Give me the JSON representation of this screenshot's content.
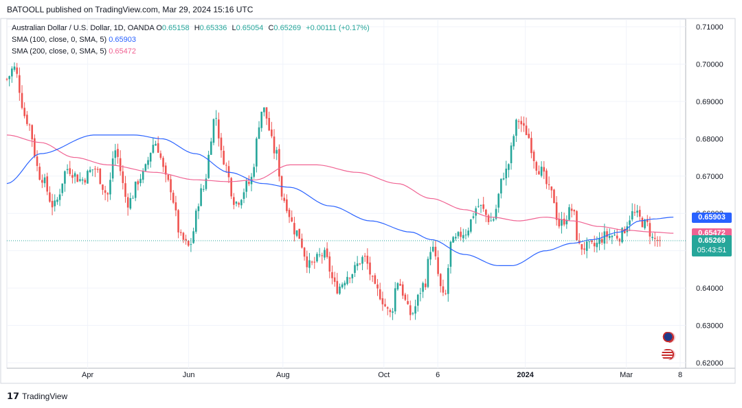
{
  "header": {
    "published": "BATOOLL published on TradingView.com, Mar 29, 2024 15:16 UTC"
  },
  "legend": {
    "symbol": "Australian Dollar / U.S. Dollar, 1D, OANDA",
    "o_label": "O",
    "o": "0.65158",
    "h_label": "H",
    "h": "0.65336",
    "l_label": "L",
    "l": "0.65054",
    "c_label": "C",
    "c": "0.65269",
    "change": "+0.00111 (+0.17%)",
    "sma100_label": "SMA (100, close, 0, SMA, 5)",
    "sma100_value": "0.65903",
    "sma200_label": "SMA (200, close, 0, SMA, 5)",
    "sma200_value": "0.65472"
  },
  "badges": {
    "sma100": "0.65903",
    "sma200": "0.65472",
    "last_price": "0.65269",
    "countdown": "05:43:51"
  },
  "footer": {
    "brand": "TradingView"
  },
  "colors": {
    "up": "#26a69a",
    "down": "#ef5350",
    "sma100": "#2962ff",
    "sma200": "#f06292",
    "last_line": "#26a69a"
  },
  "chart_data": {
    "type": "candlestick",
    "ylim": [
      0.62,
      0.71
    ],
    "y_ticks": [
      "0.71000",
      "0.70000",
      "0.69000",
      "0.68000",
      "0.67000",
      "0.66000",
      "0.65000",
      "0.64000",
      "0.63000",
      "0.62000"
    ],
    "x_ticks": [
      {
        "label": "Apr",
        "t": 0.12
      },
      {
        "label": "Jun",
        "t": 0.27
      },
      {
        "label": "Aug",
        "t": 0.41
      },
      {
        "label": "Oct",
        "t": 0.56
      },
      {
        "label": "6",
        "t": 0.64
      },
      {
        "label": "2024",
        "t": 0.77,
        "bold": true
      },
      {
        "label": "Mar",
        "t": 0.92
      },
      {
        "label": "8",
        "t": 1.0
      }
    ],
    "series": [
      {
        "name": "AUD/USD close",
        "anchors": [
          [
            0.0,
            0.696
          ],
          [
            0.01,
            0.699
          ],
          [
            0.03,
            0.685
          ],
          [
            0.05,
            0.67
          ],
          [
            0.07,
            0.662
          ],
          [
            0.09,
            0.672
          ],
          [
            0.11,
            0.669
          ],
          [
            0.13,
            0.672
          ],
          [
            0.15,
            0.665
          ],
          [
            0.16,
            0.677
          ],
          [
            0.18,
            0.663
          ],
          [
            0.2,
            0.67
          ],
          [
            0.22,
            0.679
          ],
          [
            0.24,
            0.668
          ],
          [
            0.26,
            0.653
          ],
          [
            0.27,
            0.651
          ],
          [
            0.29,
            0.666
          ],
          [
            0.31,
            0.686
          ],
          [
            0.32,
            0.675
          ],
          [
            0.34,
            0.663
          ],
          [
            0.36,
            0.668
          ],
          [
            0.38,
            0.688
          ],
          [
            0.4,
            0.676
          ],
          [
            0.41,
            0.664
          ],
          [
            0.43,
            0.655
          ],
          [
            0.45,
            0.646
          ],
          [
            0.47,
            0.649
          ],
          [
            0.49,
            0.64
          ],
          [
            0.51,
            0.644
          ],
          [
            0.53,
            0.648
          ],
          [
            0.55,
            0.639
          ],
          [
            0.57,
            0.633
          ],
          [
            0.58,
            0.642
          ],
          [
            0.6,
            0.633
          ],
          [
            0.62,
            0.641
          ],
          [
            0.63,
            0.651
          ],
          [
            0.65,
            0.637
          ],
          [
            0.66,
            0.652
          ],
          [
            0.68,
            0.655
          ],
          [
            0.7,
            0.662
          ],
          [
            0.72,
            0.658
          ],
          [
            0.74,
            0.671
          ],
          [
            0.76,
            0.685
          ],
          [
            0.77,
            0.682
          ],
          [
            0.79,
            0.672
          ],
          [
            0.81,
            0.665
          ],
          [
            0.82,
            0.657
          ],
          [
            0.84,
            0.661
          ],
          [
            0.85,
            0.651
          ],
          [
            0.87,
            0.651
          ],
          [
            0.89,
            0.654
          ],
          [
            0.91,
            0.654
          ],
          [
            0.93,
            0.66
          ],
          [
            0.95,
            0.657
          ],
          [
            0.96,
            0.653
          ],
          [
            0.97,
            0.6527
          ]
        ]
      },
      {
        "name": "SMA 100",
        "anchors": [
          [
            0.0,
            0.668
          ],
          [
            0.05,
            0.676
          ],
          [
            0.13,
            0.681
          ],
          [
            0.19,
            0.681
          ],
          [
            0.23,
            0.68
          ],
          [
            0.28,
            0.676
          ],
          [
            0.33,
            0.671
          ],
          [
            0.38,
            0.668
          ],
          [
            0.42,
            0.667
          ],
          [
            0.48,
            0.662
          ],
          [
            0.54,
            0.658
          ],
          [
            0.6,
            0.655
          ],
          [
            0.63,
            0.653
          ],
          [
            0.68,
            0.649
          ],
          [
            0.73,
            0.646
          ],
          [
            0.75,
            0.646
          ],
          [
            0.8,
            0.65
          ],
          [
            0.84,
            0.652
          ],
          [
            0.87,
            0.653
          ],
          [
            0.91,
            0.655
          ],
          [
            0.94,
            0.658
          ],
          [
            0.96,
            0.6585
          ],
          [
            0.99,
            0.659
          ]
        ]
      },
      {
        "name": "SMA 200",
        "anchors": [
          [
            0.0,
            0.681
          ],
          [
            0.05,
            0.679
          ],
          [
            0.1,
            0.675
          ],
          [
            0.15,
            0.673
          ],
          [
            0.22,
            0.671
          ],
          [
            0.28,
            0.669
          ],
          [
            0.33,
            0.6685
          ],
          [
            0.37,
            0.669
          ],
          [
            0.42,
            0.673
          ],
          [
            0.46,
            0.673
          ],
          [
            0.52,
            0.671
          ],
          [
            0.58,
            0.668
          ],
          [
            0.63,
            0.664
          ],
          [
            0.68,
            0.661
          ],
          [
            0.72,
            0.659
          ],
          [
            0.76,
            0.658
          ],
          [
            0.8,
            0.659
          ],
          [
            0.84,
            0.658
          ],
          [
            0.88,
            0.6565
          ],
          [
            0.92,
            0.6555
          ],
          [
            0.96,
            0.655
          ],
          [
            0.99,
            0.6547
          ]
        ]
      }
    ],
    "last_close": 0.65269,
    "sma100_last": 0.65903,
    "sma200_last": 0.65472
  }
}
